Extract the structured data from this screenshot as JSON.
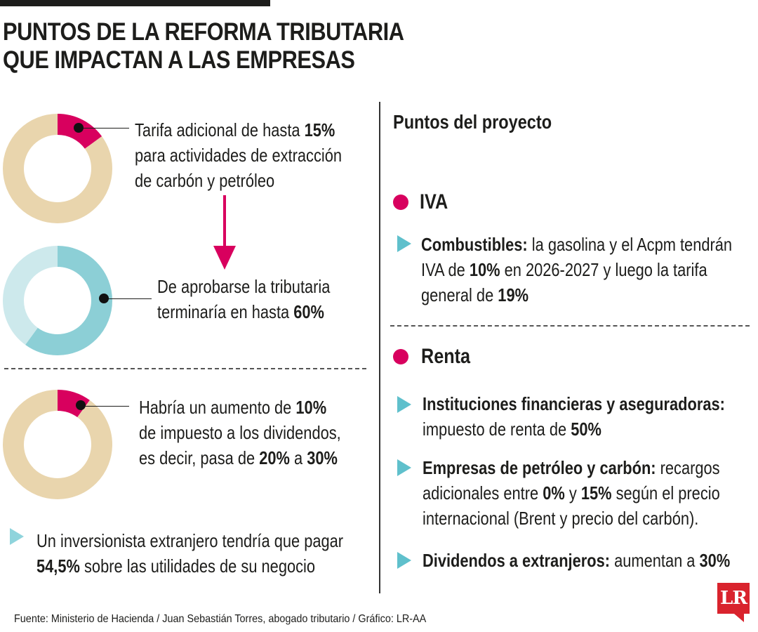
{
  "title": [
    "PUNTOS DE LA REFORMA TRIBUTARIA",
    "QUE IMPACTAN A LAS EMPRESAS"
  ],
  "colors": {
    "accent": "#d8005e",
    "sand": "#e9d5ad",
    "teal": "#8ccfd6",
    "teal_light": "#cde9ec",
    "bullet": "#8fd4dc"
  },
  "chart_data": [
    {
      "type": "pie",
      "style": "donut",
      "values": [
        15,
        85
      ],
      "slice_colors": [
        "#d8005e",
        "#e9d5ad"
      ],
      "annotation": [
        "Tarifa adicional de hasta ",
        "15%",
        "para actividades de extracción",
        "de carbón y petróleo"
      ]
    },
    {
      "type": "pie",
      "style": "donut",
      "values": [
        60,
        40
      ],
      "slice_colors": [
        "#8ccfd6",
        "#cde9ec"
      ],
      "annotation": [
        "De aprobarse la tributaria",
        "terminaría en hasta ",
        "60%"
      ]
    },
    {
      "type": "pie",
      "style": "donut",
      "values": [
        10,
        90
      ],
      "slice_colors": [
        "#d8005e",
        "#e9d5ad"
      ],
      "annotation": [
        "Habría un aumento de ",
        "10%",
        "de impuesto a los dividendos,",
        "es decir, pasa de ",
        "20%",
        " a ",
        "30%"
      ]
    }
  ],
  "left_note": [
    "Un inversionista extranjero tendría que pagar",
    "54,5%",
    " sobre las utilidades de su negocio"
  ],
  "right": {
    "heading": "Puntos del proyecto",
    "iva": {
      "label": "IVA",
      "item": [
        "Combustibles:",
        " la gasolina y el Acpm tendrán",
        "IVA de ",
        "10%",
        " en 2026-2027 y luego la tarifa",
        "general de ",
        "19%"
      ]
    },
    "renta": {
      "label": "Renta",
      "item1": [
        "Instituciones financieras y aseguradoras:",
        "impuesto de renta de ",
        "50%"
      ],
      "item2": [
        "Empresas de petróleo y carbón:",
        " recargos",
        "adicionales entre ",
        "0%",
        " y ",
        "15%",
        " según el precio",
        "internacional (Brent y precio del carbón)."
      ],
      "item3": [
        "Dividendos a extranjeros:",
        " aumentan a ",
        "30%"
      ]
    }
  },
  "source": "Fuente: Ministerio de Hacienda / Juan Sebastián Torres, abogado tributario / Gráfico: LR-AA",
  "logo": "LR"
}
